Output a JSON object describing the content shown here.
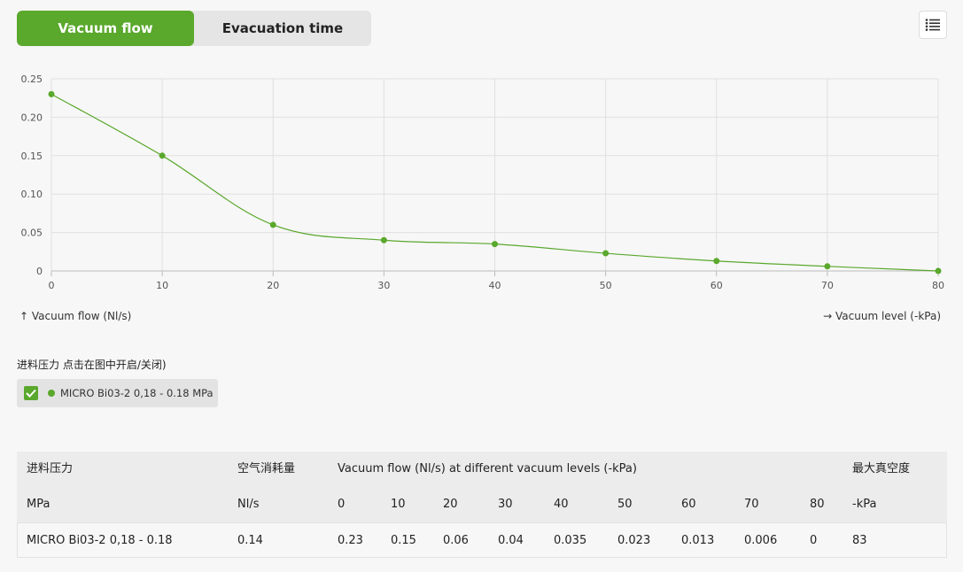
{
  "tabs": [
    {
      "label": "Vacuum flow",
      "active": true
    },
    {
      "label": "Evacuation time",
      "active": false
    }
  ],
  "menu_icon": "list-icon",
  "axis_notes": {
    "y": "↑ Vacuum flow (Nl/s)",
    "x": "→ Vacuum level (-kPa)"
  },
  "legend": {
    "title": "进料压力 点击在图中开启/关闭)",
    "items": [
      {
        "label": "MICRO Bi03-2 0,18 - 0.18 MPa",
        "checked": true,
        "color": "#5aa82c"
      }
    ]
  },
  "chart_data": {
    "type": "line",
    "x": [
      0,
      10,
      20,
      30,
      40,
      50,
      60,
      70,
      80
    ],
    "series": [
      {
        "name": "MICRO Bi03-2 0,18 - 0.18 MPa",
        "values": [
          0.23,
          0.15,
          0.06,
          0.04,
          0.035,
          0.023,
          0.013,
          0.006,
          0
        ],
        "color": "#5aa82c"
      }
    ],
    "xlim": [
      0,
      80
    ],
    "ylim": [
      0,
      0.25
    ],
    "xticks": [
      "0",
      "10",
      "20",
      "30",
      "40",
      "50",
      "60",
      "70",
      "80"
    ],
    "yticks": [
      "0",
      "0.05",
      "0.10",
      "0.15",
      "0.20",
      "0.25"
    ],
    "ytick_values": [
      0,
      0.05,
      0.1,
      0.15,
      0.2,
      0.25
    ],
    "xtick_values": [
      0,
      10,
      20,
      30,
      40,
      50,
      60,
      70,
      80
    ],
    "grid": true
  },
  "table": {
    "head1": {
      "col_pressure": "进料压力",
      "col_air": "空气消耗量",
      "col_flow": "Vacuum flow (Nl/s) at different vacuum levels (-kPa)",
      "col_max": "最大真空度"
    },
    "head2": {
      "unit_pressure": "MPa",
      "unit_air": "Nl/s",
      "levels": [
        "0",
        "10",
        "20",
        "30",
        "40",
        "50",
        "60",
        "70",
        "80"
      ],
      "unit_max": "-kPa"
    },
    "rows": [
      {
        "name": "MICRO Bi03-2 0,18 - 0.18",
        "air": "0.14",
        "flows": [
          "0.23",
          "0.15",
          "0.06",
          "0.04",
          "0.035",
          "0.023",
          "0.013",
          "0.006",
          "0"
        ],
        "max": "83"
      }
    ]
  }
}
